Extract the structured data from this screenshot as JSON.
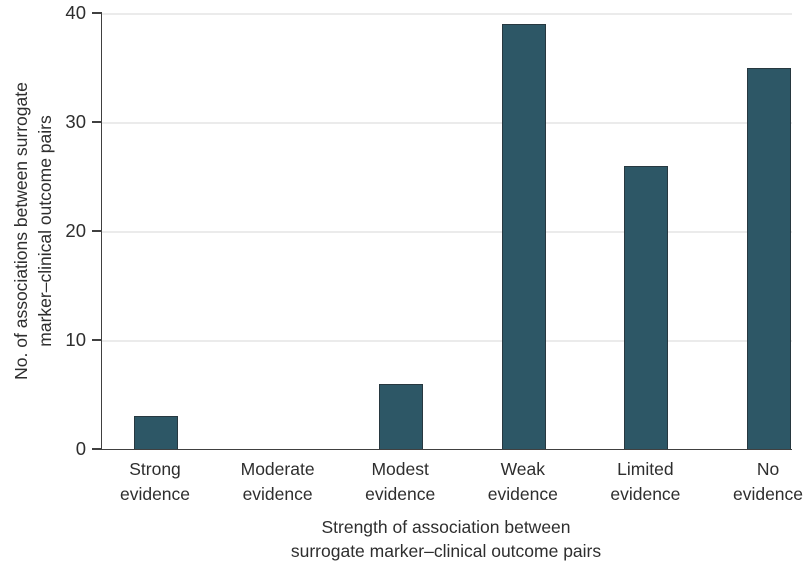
{
  "chart_data": {
    "type": "bar",
    "categories": [
      "Strong evidence",
      "Moderate evidence",
      "Modest evidence",
      "Weak evidence",
      "Limited evidence",
      "No evidence"
    ],
    "values": [
      3,
      0,
      6,
      39,
      26,
      35
    ],
    "xlabel": "Strength of association between surrogate marker–clinical outcome pairs",
    "ylabel": "No. of associations between surrogate marker–clinical outcome pairs",
    "xlabel_lines": [
      "Strength of association between",
      "surrogate marker–clinical outcome pairs"
    ],
    "ylabel_lines": [
      "No. of associations between surrogate",
      "marker–clinical outcome pairs"
    ],
    "ylim": [
      0,
      40
    ],
    "yticks": [
      0,
      10,
      20,
      30,
      40
    ],
    "grid": true,
    "legend_position": "none",
    "colors": {
      "bar_fill": "#2D5766",
      "bar_border": "#273840",
      "axis": "#404040",
      "gridline": "#EBEBEB",
      "text": "#2E2E2E"
    }
  }
}
